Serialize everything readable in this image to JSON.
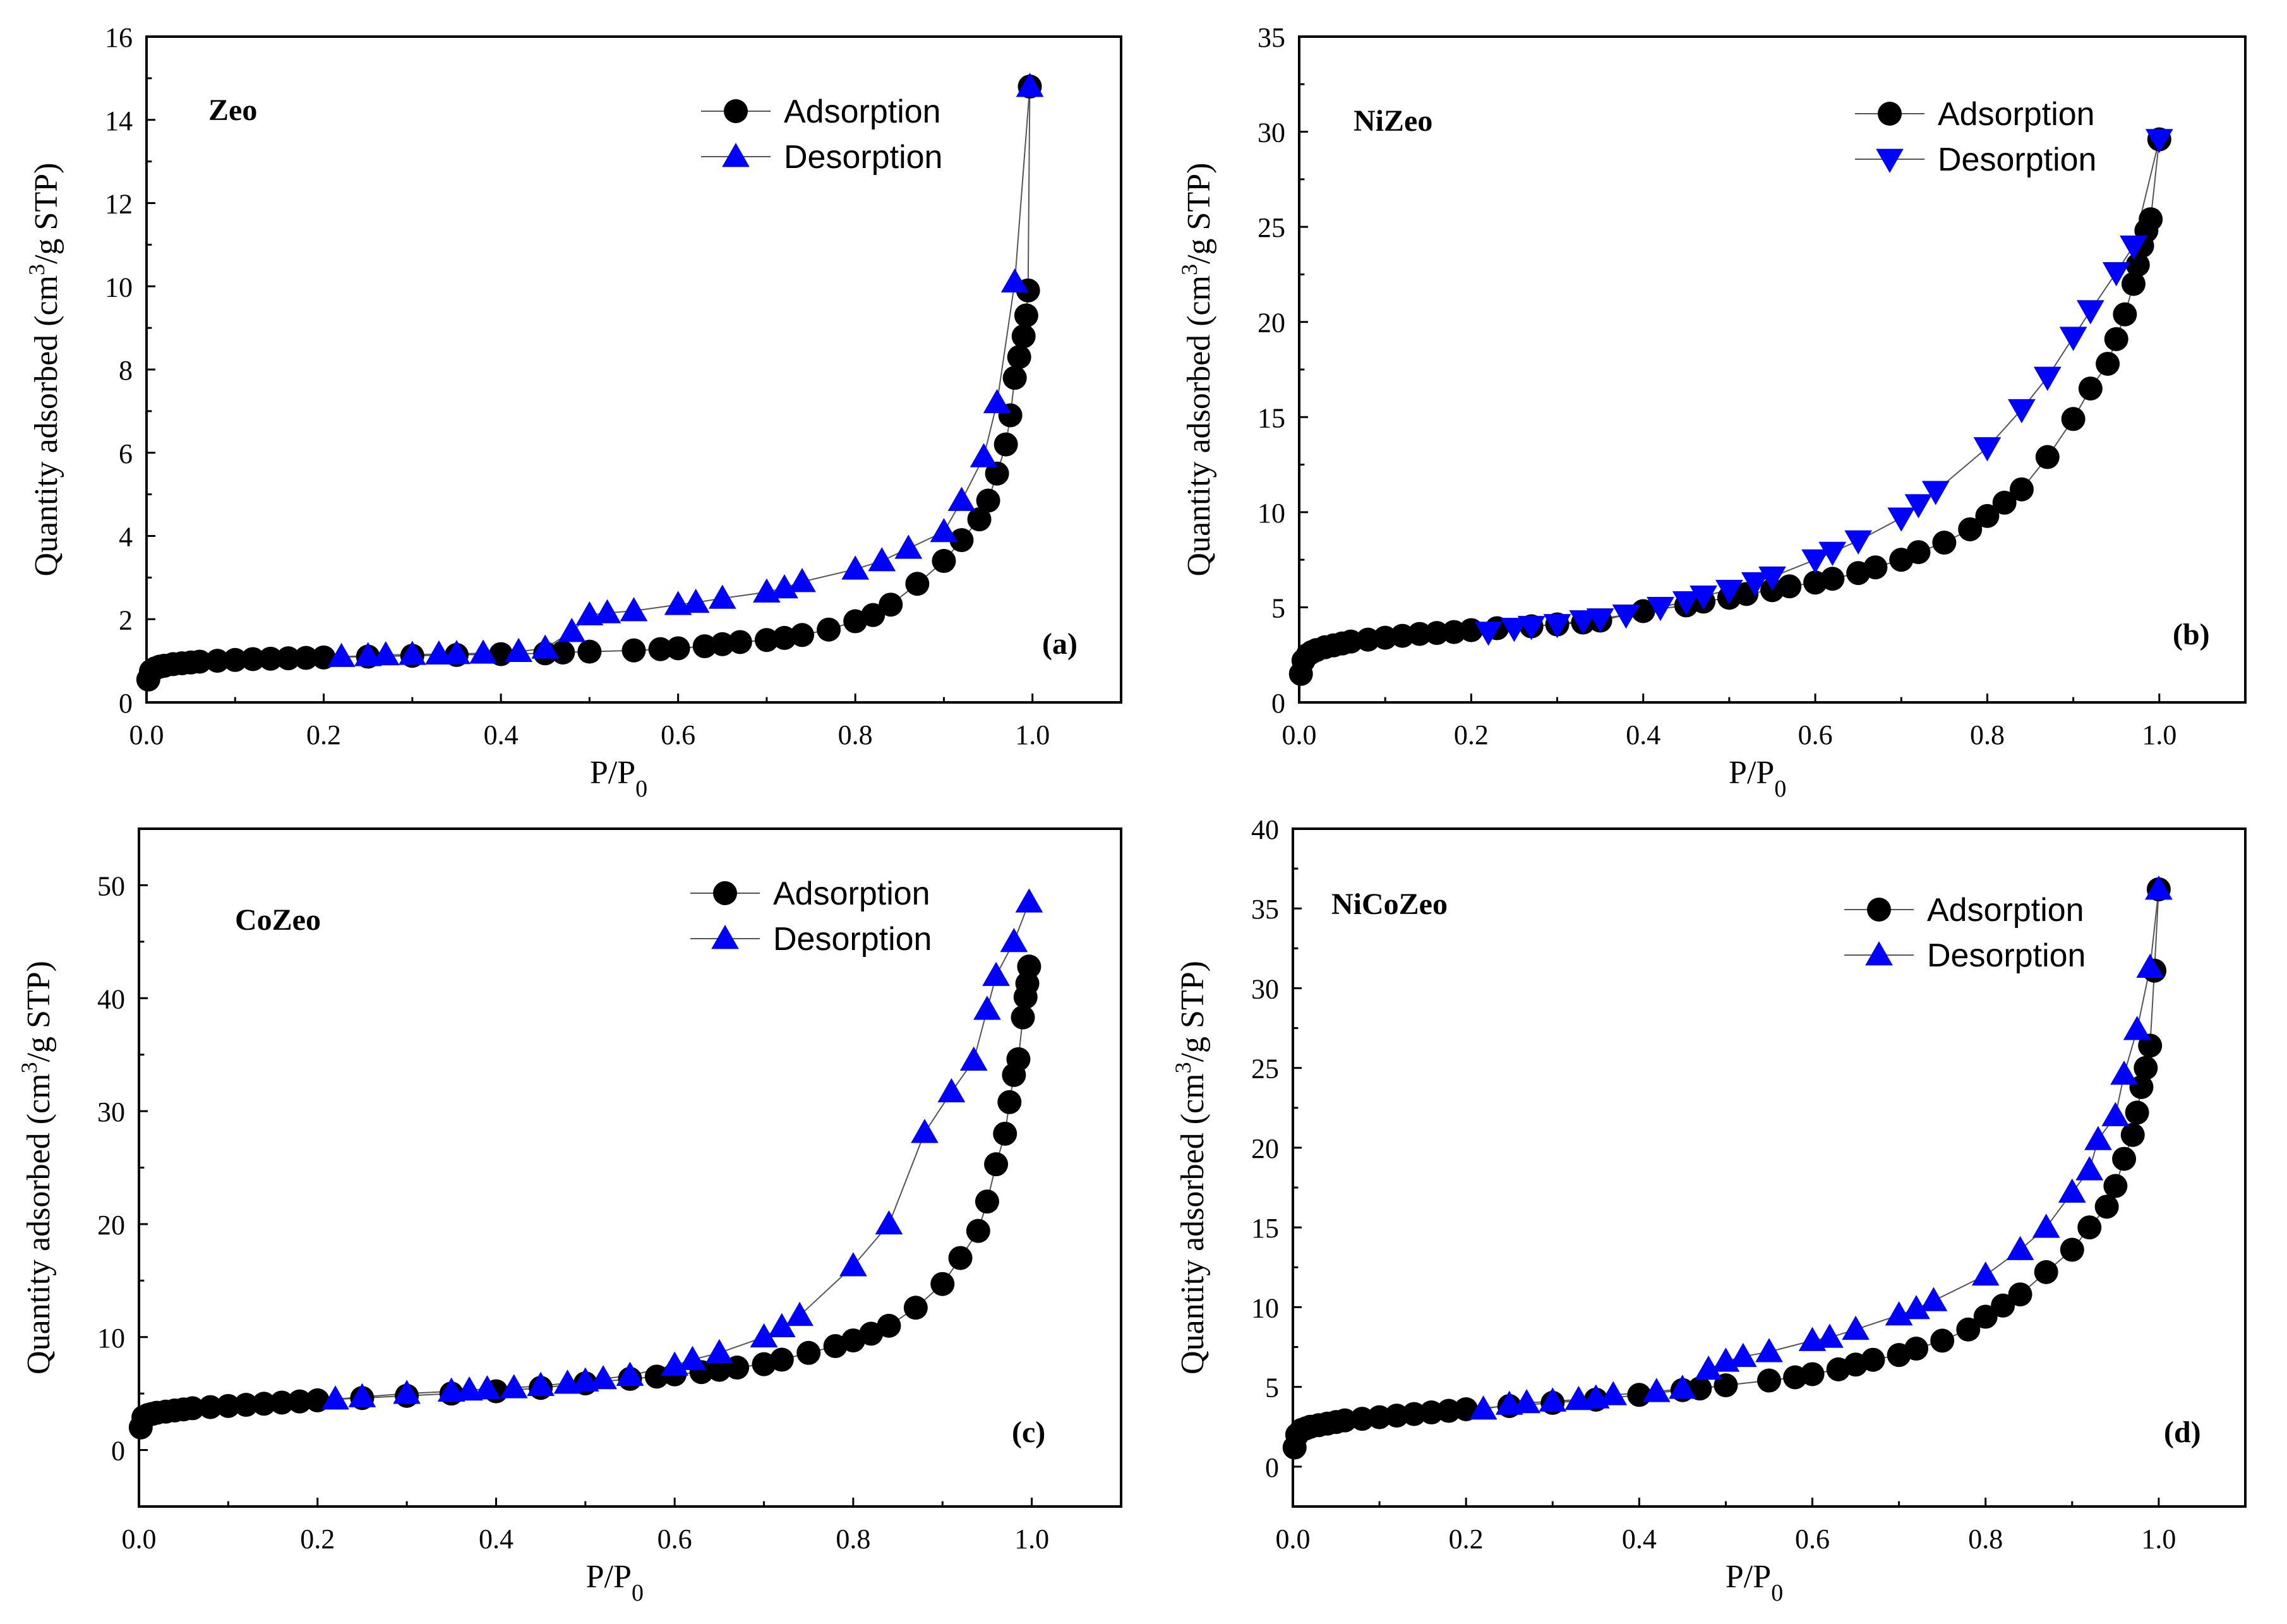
{
  "colors": {
    "adsorption": "#000000",
    "desorption": "#0000ff",
    "line": "#555555",
    "axis": "#000000"
  },
  "chart_data": [
    {
      "type": "scatter",
      "panel_label": "(a)",
      "title": "Zeo",
      "xlabel_main": "P/P",
      "xlabel_sub": "0",
      "ylabel_pre": "Quantity adsorbed (cm",
      "ylabel_sup": "3",
      "ylabel_post": "/g STP)",
      "xlim": [
        0,
        1.1
      ],
      "ylim": [
        0,
        16
      ],
      "xticks": [
        "0.0",
        "0.2",
        "0.4",
        "0.6",
        "0.8",
        "1.0"
      ],
      "xtick_values": [
        0,
        0.2,
        0.4,
        0.6,
        0.8,
        1.0
      ],
      "yticks": [
        "0",
        "2",
        "4",
        "6",
        "8",
        "10",
        "12",
        "14",
        "16"
      ],
      "ytick_values": [
        0,
        2,
        4,
        6,
        8,
        10,
        12,
        14,
        16
      ],
      "desorption_marker": "triangle-up",
      "series": [
        {
          "name": "Adsorption",
          "x": [
            0.002,
            0.005,
            0.01,
            0.015,
            0.02,
            0.03,
            0.04,
            0.05,
            0.06,
            0.08,
            0.1,
            0.12,
            0.14,
            0.16,
            0.18,
            0.2,
            0.25,
            0.3,
            0.35,
            0.4,
            0.45,
            0.47,
            0.5,
            0.55,
            0.58,
            0.6,
            0.63,
            0.65,
            0.67,
            0.7,
            0.72,
            0.74,
            0.77,
            0.8,
            0.82,
            0.84,
            0.87,
            0.9,
            0.92,
            0.94,
            0.95,
            0.96,
            0.97,
            0.975,
            0.98,
            0.985,
            0.99,
            0.993,
            0.995,
            0.997
          ],
          "y": [
            0.55,
            0.75,
            0.82,
            0.86,
            0.88,
            0.92,
            0.94,
            0.96,
            0.98,
            1.0,
            1.02,
            1.04,
            1.05,
            1.06,
            1.07,
            1.08,
            1.1,
            1.12,
            1.14,
            1.16,
            1.18,
            1.2,
            1.22,
            1.25,
            1.28,
            1.3,
            1.35,
            1.4,
            1.45,
            1.5,
            1.55,
            1.62,
            1.75,
            1.95,
            2.1,
            2.35,
            2.85,
            3.4,
            3.9,
            4.4,
            4.85,
            5.5,
            6.2,
            6.9,
            7.8,
            8.3,
            8.8,
            9.3,
            9.9,
            14.8
          ]
        },
        {
          "name": "Desorption",
          "x": [
            0.997,
            0.98,
            0.96,
            0.945,
            0.92,
            0.9,
            0.86,
            0.83,
            0.8,
            0.74,
            0.72,
            0.7,
            0.65,
            0.62,
            0.6,
            0.55,
            0.52,
            0.5,
            0.48,
            0.45,
            0.42,
            0.38,
            0.35,
            0.33,
            0.3,
            0.27,
            0.25,
            0.22
          ],
          "y": [
            14.8,
            10.1,
            7.2,
            5.9,
            4.85,
            4.1,
            3.7,
            3.4,
            3.2,
            2.9,
            2.75,
            2.65,
            2.5,
            2.4,
            2.35,
            2.2,
            2.15,
            2.1,
            1.7,
            1.3,
            1.22,
            1.18,
            1.17,
            1.16,
            1.15,
            1.14,
            1.12,
            1.1
          ]
        }
      ]
    },
    {
      "type": "scatter",
      "panel_label": "(b)",
      "title": "NiZeo",
      "xlabel_main": "P/P",
      "xlabel_sub": "0",
      "ylabel_pre": "Quantity adsorbed (cm",
      "ylabel_sup": "3",
      "ylabel_post": "/g STP)",
      "xlim": [
        0,
        1.1
      ],
      "ylim": [
        0,
        35
      ],
      "xticks": [
        "0.0",
        "0.2",
        "0.4",
        "0.6",
        "0.8",
        "1.0"
      ],
      "xtick_values": [
        0,
        0.2,
        0.4,
        0.6,
        0.8,
        1.0
      ],
      "yticks": [
        "0",
        "5",
        "10",
        "15",
        "20",
        "25",
        "30",
        "35"
      ],
      "ytick_values": [
        0,
        5,
        10,
        15,
        20,
        25,
        30,
        35
      ],
      "desorption_marker": "triangle-down",
      "series": [
        {
          "name": "Adsorption",
          "x": [
            0.002,
            0.005,
            0.01,
            0.015,
            0.02,
            0.03,
            0.04,
            0.05,
            0.06,
            0.08,
            0.1,
            0.12,
            0.14,
            0.16,
            0.18,
            0.2,
            0.23,
            0.27,
            0.3,
            0.33,
            0.35,
            0.4,
            0.45,
            0.47,
            0.5,
            0.52,
            0.55,
            0.57,
            0.6,
            0.62,
            0.65,
            0.67,
            0.7,
            0.72,
            0.75,
            0.78,
            0.8,
            0.82,
            0.84,
            0.87,
            0.9,
            0.92,
            0.94,
            0.95,
            0.96,
            0.97,
            0.975,
            0.98,
            0.985,
            0.99,
            1.0
          ],
          "y": [
            1.5,
            2.2,
            2.5,
            2.65,
            2.75,
            2.9,
            3.0,
            3.1,
            3.2,
            3.3,
            3.4,
            3.5,
            3.6,
            3.65,
            3.7,
            3.8,
            3.9,
            4.0,
            4.1,
            4.2,
            4.3,
            4.8,
            5.1,
            5.3,
            5.5,
            5.7,
            5.9,
            6.1,
            6.3,
            6.5,
            6.8,
            7.1,
            7.5,
            7.9,
            8.4,
            9.1,
            9.8,
            10.5,
            11.2,
            12.9,
            14.9,
            16.5,
            17.8,
            19.1,
            20.4,
            22.0,
            23.0,
            24.0,
            24.8,
            25.4,
            29.6
          ]
        },
        {
          "name": "Desorption",
          "x": [
            1.0,
            0.97,
            0.95,
            0.92,
            0.9,
            0.87,
            0.84,
            0.8,
            0.74,
            0.72,
            0.7,
            0.65,
            0.62,
            0.6,
            0.55,
            0.53,
            0.5,
            0.47,
            0.45,
            0.42,
            0.38,
            0.35,
            0.33,
            0.3,
            0.27,
            0.25,
            0.22
          ],
          "y": [
            29.6,
            24.0,
            22.6,
            20.6,
            19.2,
            17.1,
            15.4,
            13.4,
            11.1,
            10.4,
            9.7,
            8.5,
            7.9,
            7.5,
            6.6,
            6.3,
            5.9,
            5.6,
            5.3,
            5.0,
            4.6,
            4.4,
            4.3,
            4.1,
            4.0,
            3.9,
            3.7
          ]
        }
      ]
    },
    {
      "type": "scatter",
      "panel_label": "(c)",
      "title": "CoZeo",
      "xlabel_main": "P/P",
      "xlabel_sub": "0",
      "ylabel_pre": "Quantity adsorbed (cm",
      "ylabel_sup": "3",
      "ylabel_post": "/g STP)",
      "xlim": [
        0,
        1.1
      ],
      "ylim": [
        -5,
        55
      ],
      "xticks": [
        "0.0",
        "0.2",
        "0.4",
        "0.6",
        "0.8",
        "1.0"
      ],
      "xtick_values": [
        0,
        0.2,
        0.4,
        0.6,
        0.8,
        1.0
      ],
      "yticks": [
        "0",
        "10",
        "20",
        "30",
        "40",
        "50"
      ],
      "ytick_values": [
        0,
        10,
        20,
        30,
        40,
        50
      ],
      "desorption_marker": "triangle-up",
      "series": [
        {
          "name": "Adsorption",
          "x": [
            0.002,
            0.005,
            0.01,
            0.015,
            0.02,
            0.03,
            0.04,
            0.05,
            0.06,
            0.08,
            0.1,
            0.12,
            0.14,
            0.16,
            0.18,
            0.2,
            0.25,
            0.3,
            0.35,
            0.4,
            0.45,
            0.5,
            0.55,
            0.58,
            0.6,
            0.63,
            0.65,
            0.67,
            0.7,
            0.72,
            0.75,
            0.78,
            0.8,
            0.82,
            0.84,
            0.87,
            0.9,
            0.92,
            0.94,
            0.95,
            0.96,
            0.97,
            0.975,
            0.98,
            0.985,
            0.99,
            0.993,
            0.995,
            0.997
          ],
          "y": [
            2.0,
            2.9,
            3.1,
            3.2,
            3.3,
            3.4,
            3.5,
            3.6,
            3.7,
            3.8,
            3.9,
            4.0,
            4.1,
            4.2,
            4.3,
            4.4,
            4.6,
            4.8,
            5.0,
            5.2,
            5.5,
            5.9,
            6.3,
            6.5,
            6.7,
            6.9,
            7.1,
            7.3,
            7.6,
            8.0,
            8.6,
            9.2,
            9.7,
            10.3,
            11.0,
            12.6,
            14.7,
            17.0,
            19.4,
            22.0,
            25.3,
            28.0,
            30.8,
            33.2,
            34.6,
            38.3,
            40.1,
            41.3,
            42.8
          ]
        },
        {
          "name": "Desorption",
          "x": [
            0.997,
            0.98,
            0.96,
            0.95,
            0.935,
            0.91,
            0.88,
            0.84,
            0.8,
            0.74,
            0.72,
            0.7,
            0.65,
            0.62,
            0.6,
            0.55,
            0.52,
            0.5,
            0.48,
            0.45,
            0.42,
            0.39,
            0.37,
            0.35,
            0.3,
            0.25,
            0.22
          ],
          "y": [
            48.5,
            45.0,
            42.0,
            39.0,
            34.5,
            31.7,
            28.1,
            20.0,
            16.3,
            11.9,
            10.9,
            10.0,
            8.6,
            8.0,
            7.5,
            6.6,
            6.3,
            6.1,
            5.9,
            5.7,
            5.5,
            5.4,
            5.3,
            5.2,
            5.0,
            4.7,
            4.5
          ]
        }
      ]
    },
    {
      "type": "scatter",
      "panel_label": "(d)",
      "title": "NiCoZeo",
      "xlabel_main": "P/P",
      "xlabel_sub": "0",
      "ylabel_pre": "Quantity adsorbed (cm",
      "ylabel_sup": "3",
      "ylabel_post": "/g STP)",
      "xlim": [
        0,
        1.1
      ],
      "ylim": [
        -2.5,
        40
      ],
      "xticks": [
        "0.0",
        "0.2",
        "0.4",
        "0.6",
        "0.8",
        "1.0"
      ],
      "xtick_values": [
        0,
        0.2,
        0.4,
        0.6,
        0.8,
        1.0
      ],
      "yticks": [
        "0",
        "5",
        "10",
        "15",
        "20",
        "25",
        "30",
        "35",
        "40"
      ],
      "ytick_values": [
        0,
        5,
        10,
        15,
        20,
        25,
        30,
        35,
        40
      ],
      "desorption_marker": "triangle-up",
      "series": [
        {
          "name": "Adsorption",
          "x": [
            0.002,
            0.005,
            0.01,
            0.015,
            0.02,
            0.03,
            0.04,
            0.05,
            0.06,
            0.08,
            0.1,
            0.12,
            0.14,
            0.16,
            0.18,
            0.2,
            0.25,
            0.3,
            0.35,
            0.4,
            0.45,
            0.47,
            0.5,
            0.55,
            0.58,
            0.6,
            0.63,
            0.65,
            0.67,
            0.7,
            0.72,
            0.75,
            0.78,
            0.8,
            0.82,
            0.84,
            0.87,
            0.9,
            0.92,
            0.94,
            0.95,
            0.96,
            0.97,
            0.975,
            0.98,
            0.985,
            0.99,
            0.995,
            1.0
          ],
          "y": [
            1.2,
            2.0,
            2.3,
            2.4,
            2.5,
            2.6,
            2.7,
            2.8,
            2.9,
            3.0,
            3.1,
            3.2,
            3.3,
            3.4,
            3.5,
            3.6,
            3.8,
            4.0,
            4.2,
            4.5,
            4.8,
            4.9,
            5.1,
            5.4,
            5.6,
            5.8,
            6.1,
            6.4,
            6.7,
            7.0,
            7.4,
            7.9,
            8.6,
            9.4,
            10.1,
            10.8,
            12.2,
            13.6,
            15.0,
            16.3,
            17.6,
            19.3,
            20.8,
            22.2,
            23.8,
            25.0,
            26.4,
            31.1,
            36.2
          ]
        },
        {
          "name": "Desorption",
          "x": [
            1.0,
            0.99,
            0.975,
            0.96,
            0.95,
            0.93,
            0.92,
            0.9,
            0.87,
            0.84,
            0.8,
            0.74,
            0.72,
            0.7,
            0.65,
            0.62,
            0.6,
            0.55,
            0.52,
            0.5,
            0.48,
            0.45,
            0.42,
            0.37,
            0.35,
            0.33,
            0.3,
            0.27,
            0.25,
            0.22
          ],
          "y": [
            36.2,
            31.3,
            27.4,
            24.6,
            22.0,
            20.5,
            18.6,
            17.2,
            15.0,
            13.6,
            12.0,
            10.4,
            9.9,
            9.5,
            8.6,
            8.1,
            7.9,
            7.2,
            6.9,
            6.6,
            6.1,
            4.9,
            4.7,
            4.5,
            4.3,
            4.2,
            4.1,
            4.0,
            3.9,
            3.6
          ]
        }
      ]
    }
  ]
}
